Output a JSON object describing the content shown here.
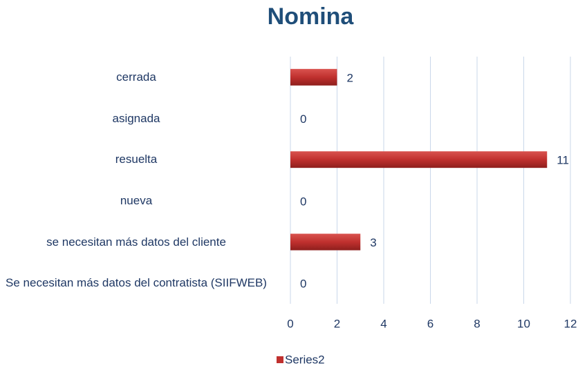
{
  "chart_data": {
    "type": "bar",
    "orientation": "horizontal",
    "title": "Nomina",
    "categories": [
      "cerrada",
      "asignada",
      "resuelta",
      "nueva",
      "se necesitan más datos del cliente",
      "Se necesitan más datos del contratista (SIIFWEB)"
    ],
    "series": [
      {
        "name": "Series2",
        "color": "#c0302e",
        "values": [
          2,
          0,
          11,
          0,
          3,
          0
        ]
      }
    ],
    "xlim": [
      0,
      12
    ],
    "xticks": [
      0,
      2,
      4,
      6,
      8,
      10,
      12
    ],
    "grid": true,
    "legend": "bottom"
  }
}
